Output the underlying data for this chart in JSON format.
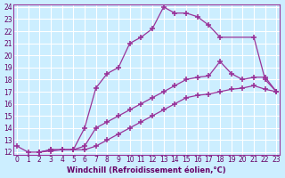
{
  "xlabel": "Windchill (Refroidissement éolien,°C)",
  "bg_color": "#cceeff",
  "line_color": "#993399",
  "grid_color": "#ffffff",
  "xlim": [
    0,
    23
  ],
  "ylim": [
    12,
    24
  ],
  "xticks": [
    0,
    1,
    2,
    3,
    4,
    5,
    6,
    7,
    8,
    9,
    10,
    11,
    12,
    13,
    14,
    15,
    16,
    17,
    18,
    19,
    20,
    21,
    22,
    23
  ],
  "yticks": [
    12,
    13,
    14,
    15,
    16,
    17,
    18,
    19,
    20,
    21,
    22,
    23,
    24
  ],
  "lines": [
    {
      "x": [
        0,
        1,
        2,
        3,
        4,
        5,
        6,
        7,
        8,
        9,
        10,
        11,
        12,
        13,
        14,
        15,
        16,
        17,
        18,
        21,
        22,
        23
      ],
      "y": [
        12.5,
        12.0,
        12.0,
        12.2,
        12.2,
        12.2,
        14.0,
        17.3,
        18.5,
        19.0,
        21.0,
        21.5,
        22.2,
        24.0,
        23.5,
        23.5,
        23.2,
        22.5,
        21.5,
        21.5,
        18.0,
        17.0
      ]
    },
    {
      "x": [
        2,
        3,
        4,
        5,
        6,
        7,
        8,
        9,
        10,
        11,
        12,
        13,
        14,
        15,
        16,
        17,
        18,
        19,
        20,
        21,
        22,
        23
      ],
      "y": [
        12.0,
        12.2,
        12.2,
        12.2,
        12.5,
        14.0,
        14.5,
        15.0,
        15.5,
        16.0,
        16.5,
        17.0,
        17.5,
        18.0,
        18.2,
        18.3,
        19.5,
        18.5,
        18.0,
        18.2,
        18.2,
        17.0
      ]
    },
    {
      "x": [
        2,
        3,
        4,
        5,
        6,
        7,
        8,
        9,
        10,
        11,
        12,
        13,
        14,
        15,
        16,
        17,
        18,
        19,
        20,
        21,
        22,
        23
      ],
      "y": [
        12.0,
        12.1,
        12.2,
        12.2,
        12.2,
        12.5,
        13.0,
        13.5,
        14.0,
        14.5,
        15.0,
        15.5,
        16.0,
        16.5,
        16.7,
        16.8,
        17.0,
        17.2,
        17.3,
        17.5,
        17.2,
        17.0
      ]
    }
  ]
}
